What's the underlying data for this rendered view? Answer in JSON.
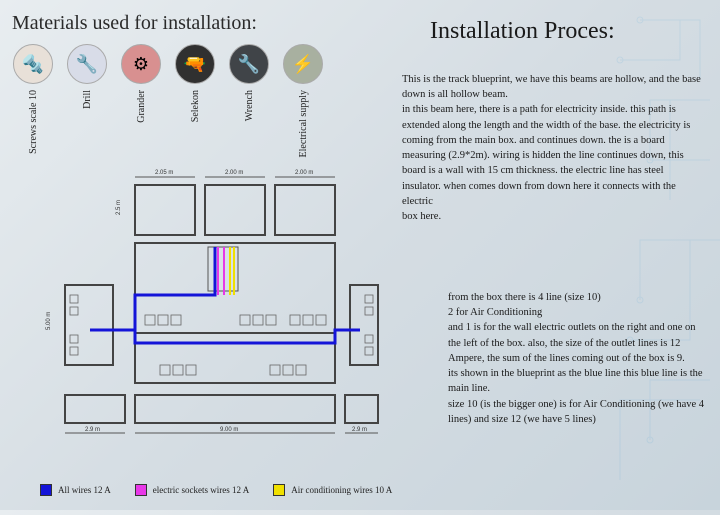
{
  "titles": {
    "materials": "Materials used for installation:",
    "process": "Installation Proces:"
  },
  "materials": [
    {
      "label": "Screws scale 10",
      "bg": "#e8e0d8",
      "icon": "🔩"
    },
    {
      "label": "Drill",
      "bg": "#d8dce8",
      "icon": "🔧"
    },
    {
      "label": "Grander",
      "bg": "#d89090",
      "icon": "⚙"
    },
    {
      "label": "Selekon",
      "bg": "#303030",
      "fg": "#ccc",
      "icon": "🔫"
    },
    {
      "label": "Wrench",
      "bg": "#404448",
      "fg": "#ccc",
      "icon": "🔧"
    },
    {
      "label": "Electrical supply",
      "bg": "#a8b0a0",
      "icon": "⚡"
    }
  ],
  "para1": "This is the track blueprint, we have this beams are hollow, and the base down is all hollow beam.\nin this beam here, there is a path for electricity inside. this path is extended along the length and the width of the base. the electricity is coming from the main box. and continues down. the is a board measuring (2.9*2m). wiring is hidden the line continues down, this board is a wall with 15 cm thickness. the electric line has steel insulator. when comes down from down here it connects with the electric\nbox here.",
  "para2": "from the box there is 4 line (size 10)\n2 for Air Conditioning\nand 1 is for the wall electric outlets on the right and one on the left of the box. also, the size of the outlet lines is 12 Ampere, the sum of the lines coming out of the box is 9.\nits shown in the blueprint as the blue line this blue line is the main line.\nsize 10 (is the bigger one) is for Air Conditioning (we have 4 lines) and size 12 (we have 5 lines)",
  "legend": [
    {
      "color": "#1414d8",
      "text": "All wires 12 A"
    },
    {
      "color": "#e838e8",
      "text": "electric sockets wires 12 A"
    },
    {
      "color": "#f0e000",
      "text": "Air conditioning wires 10 A"
    }
  ],
  "dims": {
    "top_a": "2.05 m",
    "top_b": "2.00 m",
    "top_c": "2.00 m",
    "left_h": "2.5 m",
    "far_left_h": "5.00 m",
    "bottom_a": "2.9 m",
    "bottom_b": "9.00 m",
    "bottom_c": "2.9 m"
  }
}
